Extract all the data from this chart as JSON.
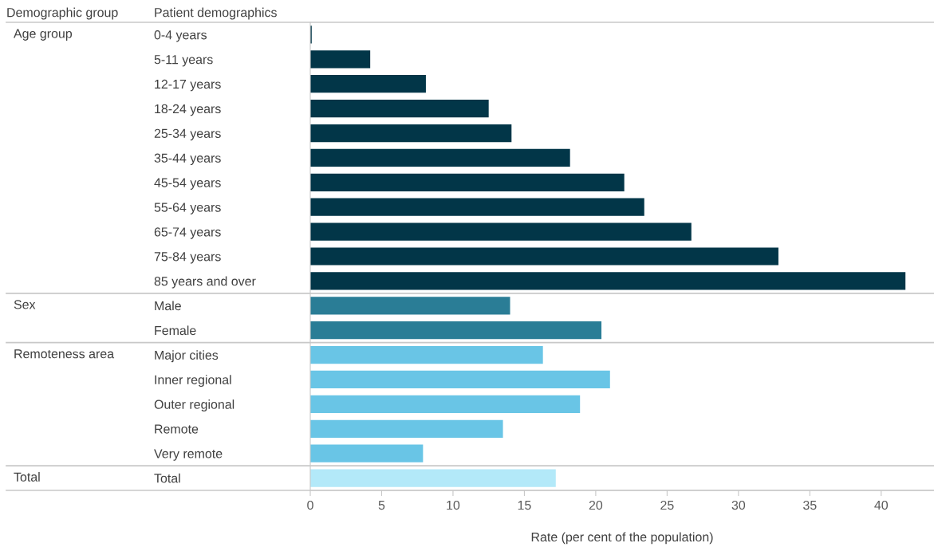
{
  "chart_data": {
    "type": "bar",
    "orientation": "horizontal",
    "ylabel": "Patient demographics",
    "xlabel": "Rate (per cent of the population)",
    "categories": [
      "0-4 years",
      "5-11 years",
      "12-17 years",
      "18-24 years",
      "25-34 years",
      "35-44 years",
      "45-54 years",
      "55-64 years",
      "65-74 years",
      "75-84 years",
      "85 years and over",
      "Male",
      "Female",
      "Major cities",
      "Inner regional",
      "Outer regional",
      "Remote",
      "Very remote",
      "Total"
    ],
    "values": [
      0.1,
      4.2,
      8.1,
      12.5,
      14.1,
      18.2,
      22.0,
      23.4,
      26.7,
      32.8,
      41.7,
      14.0,
      20.4,
      16.3,
      21.0,
      18.9,
      13.5,
      7.9,
      17.2
    ],
    "colors": [
      "#023648",
      "#023648",
      "#023648",
      "#023648",
      "#023648",
      "#023648",
      "#023648",
      "#023648",
      "#023648",
      "#023648",
      "#023648",
      "#2a7d96",
      "#2a7d96",
      "#69c5e6",
      "#69c5e6",
      "#69c5e6",
      "#69c5e6",
      "#69c5e6",
      "#b3e9f9"
    ],
    "xlim": [
      0,
      43.7
    ],
    "xticks": [
      0,
      5,
      10,
      15,
      20,
      25,
      30,
      35,
      40
    ],
    "grid": false,
    "legend": false,
    "annotations": [
      "Demographic group",
      "Age group",
      "Sex",
      "Remoteness area",
      "Total"
    ]
  }
}
